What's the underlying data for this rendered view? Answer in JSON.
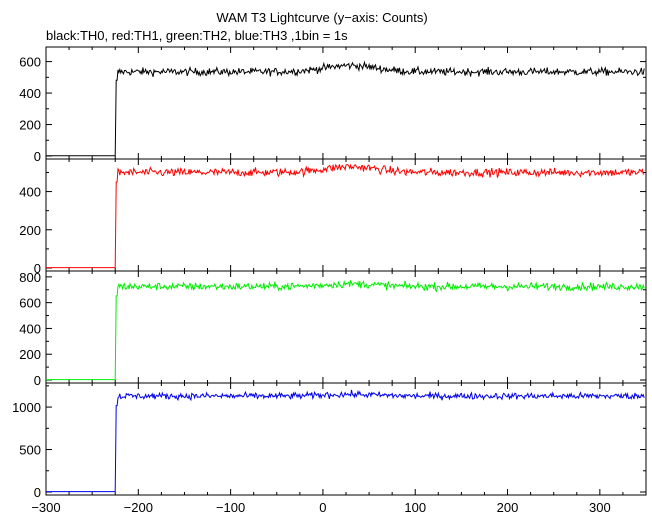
{
  "chart_data": {
    "type": "line",
    "title": "WAM T3 Lightcurve (y−axis: Counts)",
    "subtitle": "black:TH0, red:TH1, green:TH2, blue:TH3 ,1bin = 1s",
    "x_axis": {
      "range": [
        -300,
        350
      ],
      "ticks": [
        -300,
        -200,
        -100,
        0,
        100,
        200,
        300
      ],
      "tick_labels": [
        "−300",
        "−200",
        "−100",
        "0",
        "100",
        "200",
        "300"
      ]
    },
    "panels": [
      {
        "name": "TH0",
        "color": "#000000",
        "ylim": [
          0,
          680
        ],
        "yticks": [
          0,
          200,
          400,
          600
        ],
        "yticks_minor": [
          100,
          300,
          500
        ],
        "x_start": -300,
        "x_onset": -224,
        "x_end": 348,
        "baseline": 2,
        "level": 535,
        "noise_amplitude": 45,
        "bump_center": 30,
        "bump_height": 40
      },
      {
        "name": "TH1",
        "color": "#ff0000",
        "ylim": [
          0,
          560
        ],
        "yticks": [
          0,
          200,
          400
        ],
        "yticks_minor": [
          100,
          300,
          500
        ],
        "x_start": -300,
        "x_onset": -224,
        "x_end": 348,
        "baseline": 2,
        "level": 500,
        "noise_amplitude": 40,
        "bump_center": 30,
        "bump_height": 30
      },
      {
        "name": "TH2",
        "color": "#00ee00",
        "ylim": [
          0,
          830
        ],
        "yticks": [
          0,
          200,
          400,
          600,
          800
        ],
        "yticks_minor": [
          100,
          300,
          500,
          700
        ],
        "x_start": -300,
        "x_onset": -224,
        "x_end": 348,
        "baseline": 3,
        "level": 725,
        "noise_amplitude": 55,
        "bump_center": 30,
        "bump_height": 20
      },
      {
        "name": "TH3",
        "color": "#0000ee",
        "ylim": [
          0,
          1260
        ],
        "yticks": [
          0,
          500,
          1000
        ],
        "yticks_minor": [
          250,
          750,
          1250
        ],
        "x_start": -300,
        "x_onset": -224,
        "x_end": 348,
        "baseline": 5,
        "level": 1130,
        "noise_amplitude": 70,
        "bump_center": 30,
        "bump_height": 20
      }
    ]
  }
}
